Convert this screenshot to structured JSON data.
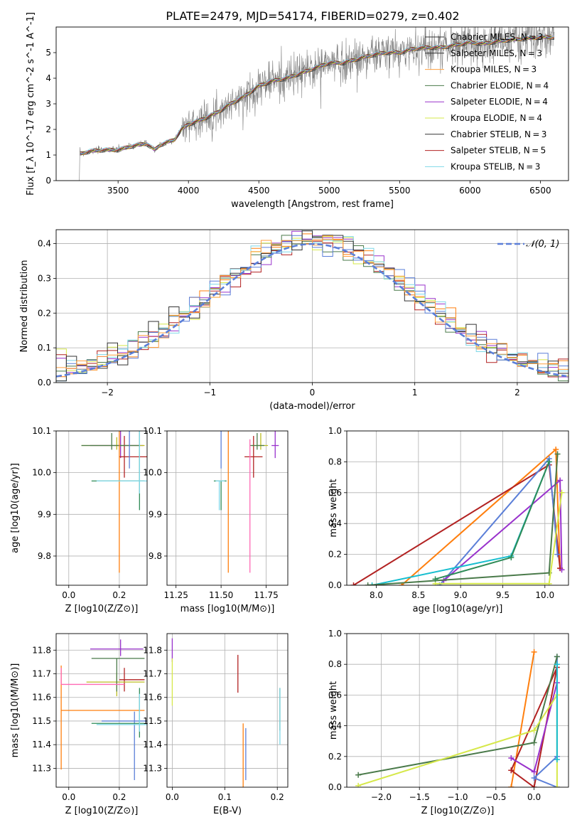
{
  "figure_title": "PLATE=2479, MJD=54174, FIBERID=0279, z=0.402",
  "colors": {
    "chabrier_miles": "#666666",
    "salpeter_miles": "#666666",
    "kroupa_miles": "#ff7f0e",
    "chabrier_elodie": "#2ca02c",
    "salpeter_elodie": "#9467bd",
    "kroupa_elodie": "#bcbd22",
    "chabrier_stelib": "#17becf",
    "salpeter_stelib": "#d62728",
    "kroupa_stelib": "#7fd0e0",
    "data": "#808080",
    "gaussian": "#5b7fd8"
  },
  "chart_data": [
    {
      "id": "spectrum",
      "type": "line",
      "title": "PLATE=2479, MJD=54174, FIBERID=0279, z=0.402",
      "xlabel": "wavelength [Angstrom, rest frame]",
      "ylabel": "Flux [f_λ 10^-17 erg cm^-2 s^-1 A^-1]",
      "xlim": [
        3060,
        6700
      ],
      "ylim": [
        0,
        6
      ],
      "xticks": [
        3500,
        4000,
        4500,
        5000,
        5500,
        6000,
        6500
      ],
      "yticks": [
        0,
        1,
        2,
        3,
        4,
        5
      ],
      "grid": false,
      "legend_position": "top-right",
      "legend": [
        {
          "label": "Chabrier MILES, N_SSP=3",
          "color": "#333333"
        },
        {
          "label": "Salpeter MILES, N_SSP=3",
          "color": "#333333"
        },
        {
          "label": "Kroupa MILES, N_SSP=3",
          "color": "#ff9f3f"
        },
        {
          "label": "Chabrier ELODIE, N_SSP=4",
          "color": "#4a7a4a"
        },
        {
          "label": "Salpeter ELODIE, N_SSP=4",
          "color": "#9932cc"
        },
        {
          "label": "Kroupa ELODIE, N_SSP=4",
          "color": "#d6e84a"
        },
        {
          "label": "Chabrier STELIB, N_SSP=3",
          "color": "#333333"
        },
        {
          "label": "Salpeter STELIB, N_SSP=5",
          "color": "#b22222"
        },
        {
          "label": "Kroupa STELIB, N_SSP=3",
          "color": "#7fd8e8"
        }
      ],
      "model_knots": {
        "x": [
          3230,
          3300,
          3400,
          3500,
          3600,
          3700,
          3760,
          3800,
          3900,
          3950,
          4000,
          4100,
          4200,
          4300,
          4400,
          4500,
          4600,
          4700,
          4800,
          4900,
          5000,
          5100,
          5200,
          5300,
          5400,
          5500,
          5600,
          5700,
          5800,
          5900,
          6000,
          6100,
          6200,
          6300,
          6400,
          6500,
          6600
        ],
        "y": [
          1.05,
          1.15,
          1.2,
          1.2,
          1.35,
          1.45,
          1.2,
          1.4,
          1.6,
          2.0,
          2.2,
          2.4,
          2.65,
          3.0,
          3.3,
          3.7,
          3.9,
          4.0,
          4.2,
          4.4,
          4.6,
          4.6,
          4.75,
          4.9,
          5.0,
          5.0,
          5.15,
          5.2,
          5.2,
          5.3,
          5.4,
          5.35,
          5.45,
          5.5,
          5.55,
          5.6,
          5.6
        ]
      }
    },
    {
      "id": "residuals",
      "type": "line",
      "xlabel": "(data-model)/error",
      "ylabel": "Normed distribution",
      "xlim": [
        -2.5,
        2.5
      ],
      "ylim": [
        0,
        0.44
      ],
      "xticks": [
        -2,
        -1,
        0,
        1,
        2
      ],
      "yticks": [
        0.0,
        0.1,
        0.2,
        0.3,
        0.4
      ],
      "grid": true,
      "legend_position": "top-right",
      "legend": [
        {
          "label": "𝒩(0, 1)",
          "color": "#5b7fd8"
        }
      ],
      "bin_width": 0.1
    },
    {
      "id": "age_vs_Z",
      "type": "scatter",
      "xlabel": "Z [log10(Z/Z⊙)]",
      "ylabel": "age [log10(age/yr)]",
      "xlim": [
        -0.05,
        0.31
      ],
      "ylim": [
        9.73,
        10.1
      ],
      "xticks": [
        0.0,
        0.2
      ],
      "yticks": [
        9.8,
        9.9,
        10.0,
        10.1
      ],
      "grid": true,
      "points": [
        {
          "x": 0.205,
          "y": 10.065,
          "xerr": [
            0.12,
            0.09
          ],
          "yerr": [
            0.03,
            0.04
          ],
          "color": "#9932cc"
        },
        {
          "x": 0.22,
          "y": 10.038,
          "xerr": [
            0.02,
            0.09
          ],
          "yerr": [
            0.05,
            0.05
          ],
          "color": "#b22222"
        },
        {
          "x": 0.19,
          "y": 10.065,
          "xerr": [
            0.14,
            0.11
          ],
          "yerr": [
            0.01,
            0.02
          ],
          "color": "#bcbd22"
        },
        {
          "x": 0.17,
          "y": 10.065,
          "xerr": [
            0.12,
            0.11
          ],
          "yerr": [
            0.01,
            0.03
          ],
          "color": "#4a7a4a"
        },
        {
          "x": 0.2,
          "y": 10.12,
          "xerr": [
            0.23,
            0.11
          ],
          "yerr": [
            0.36,
            0.0
          ],
          "color": "#ff7f0e"
        },
        {
          "x": 0.24,
          "y": 10.11,
          "xerr": [
            0.15,
            0.05
          ],
          "yerr": [
            0.1,
            0.0
          ],
          "color": "#5b7fd8"
        },
        {
          "x": 0.28,
          "y": 9.98,
          "xerr": [
            0.19,
            0.02
          ],
          "yerr": [
            0.07,
            0.15
          ],
          "color": "#2e8b57"
        },
        {
          "x": 0.28,
          "y": 9.98,
          "xerr": [
            0.17,
            0.03
          ],
          "yerr": [
            0.03,
            0.13
          ],
          "color": "#7fd8e8"
        }
      ]
    },
    {
      "id": "age_vs_mass",
      "type": "scatter",
      "xlabel": "mass [log10(M/M⊙)]",
      "xlim": [
        11.2,
        11.87
      ],
      "ylim": [
        9.73,
        10.1
      ],
      "xticks": [
        11.25,
        11.5,
        11.75
      ],
      "yticks": [
        9.8,
        9.9,
        10.0,
        10.1
      ],
      "grid": true,
      "points": [
        {
          "x": 11.8,
          "y": 10.065,
          "xerr": [
            0.02,
            0.02
          ],
          "yerr": [
            0.03,
            0.04
          ],
          "color": "#9932cc"
        },
        {
          "x": 11.68,
          "y": 10.038,
          "xerr": [
            0.05,
            0.05
          ],
          "yerr": [
            0.05,
            0.05
          ],
          "color": "#b22222"
        },
        {
          "x": 11.72,
          "y": 10.065,
          "xerr": [
            0.05,
            0.04
          ],
          "yerr": [
            0.01,
            0.03
          ],
          "color": "#bcbd22"
        },
        {
          "x": 11.7,
          "y": 10.065,
          "xerr": [
            0.04,
            0.04
          ],
          "yerr": [
            0.01,
            0.03
          ],
          "color": "#4a7a4a"
        },
        {
          "x": 11.54,
          "y": 10.12,
          "xerr": [
            0.2,
            0.0
          ],
          "yerr": [
            0.36,
            0.0
          ],
          "color": "#ff7f0e"
        },
        {
          "x": 11.5,
          "y": 10.11,
          "xerr": [
            0.25,
            0.02
          ],
          "yerr": [
            0.1,
            0.0
          ],
          "color": "#5b7fd8"
        },
        {
          "x": 11.5,
          "y": 9.98,
          "xerr": [
            0.04,
            0.03
          ],
          "yerr": [
            0.07,
            0.0
          ],
          "color": "#2e8b57"
        },
        {
          "x": 11.49,
          "y": 9.98,
          "xerr": [
            0.02,
            0.03
          ],
          "yerr": [
            0.07,
            0.0
          ],
          "color": "#7fd8e8"
        },
        {
          "x": 11.66,
          "y": 10.08,
          "xerr": [
            0.0,
            0.0
          ],
          "yerr": [
            0.32,
            0.0
          ],
          "color": "#ff69b4"
        }
      ]
    },
    {
      "id": "weight_vs_age",
      "type": "line",
      "xlabel": "age [log10(age/yr)]",
      "ylabel": "mass weight",
      "xlim": [
        7.65,
        10.28
      ],
      "ylim": [
        0,
        1
      ],
      "xticks": [
        8.0,
        8.5,
        9.0,
        9.5,
        10.0
      ],
      "yticks": [
        0.0,
        0.2,
        0.4,
        0.6,
        0.8,
        1.0
      ],
      "grid": true,
      "series": [
        {
          "color": "#ff7f0e",
          "x": [
            8.3,
            10.13,
            10.18
          ],
          "y": [
            0.0,
            0.88,
            0.11
          ]
        },
        {
          "color": "#b22222",
          "x": [
            7.73,
            10.05,
            10.18
          ],
          "y": [
            0.0,
            0.78,
            0.11
          ]
        },
        {
          "color": "#5b7fd8",
          "x": [
            8.75,
            10.05,
            10.15
          ],
          "y": [
            0.0,
            0.82,
            0.2
          ]
        },
        {
          "color": "#9932cc",
          "x": [
            8.8,
            10.18,
            10.2
          ],
          "y": [
            0.03,
            0.68,
            0.1
          ]
        },
        {
          "color": "#17becf",
          "x": [
            7.95,
            9.6,
            10.05
          ],
          "y": [
            0.0,
            0.19,
            0.8
          ]
        },
        {
          "color": "#4a7a4a",
          "x": [
            7.9,
            10.05,
            10.15
          ],
          "y": [
            0.0,
            0.08,
            0.85
          ]
        },
        {
          "color": "#d6e84a",
          "x": [
            8.7,
            10.05,
            10.2
          ],
          "y": [
            0.01,
            0.01,
            0.6
          ]
        },
        {
          "color": "#2e8b57",
          "x": [
            8.7,
            9.6,
            10.05
          ],
          "y": [
            0.04,
            0.18,
            0.8
          ]
        }
      ]
    },
    {
      "id": "mass_vs_Z",
      "type": "scatter",
      "xlabel": "Z [log10(Z/Z⊙)]",
      "ylabel": "mass [log10(M/M⊙)]",
      "xlim": [
        -0.05,
        0.31
      ],
      "ylim": [
        11.22,
        11.87
      ],
      "xticks": [
        0.0,
        0.2
      ],
      "yticks": [
        11.3,
        11.4,
        11.5,
        11.6,
        11.7,
        11.8
      ],
      "grid": true,
      "points": [
        {
          "x": 0.205,
          "y": 11.805,
          "xerr": [
            0.12,
            0.09
          ],
          "yerr": [
            0.03,
            0.04
          ],
          "color": "#9932cc"
        },
        {
          "x": 0.22,
          "y": 11.675,
          "xerr": [
            0.02,
            0.08
          ],
          "yerr": [
            0.05,
            0.05
          ],
          "color": "#b22222"
        },
        {
          "x": 0.19,
          "y": 11.665,
          "xerr": [
            0.12,
            0.11
          ],
          "yerr": [
            0.06,
            0.04
          ],
          "color": "#bcbd22"
        },
        {
          "x": 0.19,
          "y": 11.765,
          "xerr": [
            0.1,
            0.11
          ],
          "yerr": [
            0.14,
            0.0
          ],
          "color": "#4a7a4a"
        },
        {
          "x": -0.03,
          "y": 11.545,
          "xerr": [
            0.0,
            0.33
          ],
          "yerr": [
            0.25,
            0.19
          ],
          "color": "#ff7f0e"
        },
        {
          "x": 0.26,
          "y": 11.5,
          "xerr": [
            0.13,
            0.05
          ],
          "yerr": [
            0.25,
            0.04
          ],
          "color": "#5b7fd8"
        },
        {
          "x": 0.28,
          "y": 11.49,
          "xerr": [
            0.19,
            0.02
          ],
          "yerr": [
            0.06,
            0.15
          ],
          "color": "#2e8b57"
        },
        {
          "x": 0.28,
          "y": 11.485,
          "xerr": [
            0.17,
            0.03
          ],
          "yerr": [
            0.03,
            0.13
          ],
          "color": "#7fd8e8"
        },
        {
          "x": -0.03,
          "y": 11.655,
          "xerr": [
            0.0,
            0.25
          ],
          "yerr": [
            0.0,
            0.07
          ],
          "color": "#ff69b4"
        }
      ]
    },
    {
      "id": "mass_vs_EBV",
      "type": "scatter",
      "xlabel": "E(B-V)",
      "xlim": [
        -0.01,
        0.22
      ],
      "ylim": [
        11.22,
        11.87
      ],
      "xticks": [
        0.0,
        0.1,
        0.2
      ],
      "yticks": [
        11.3,
        11.4,
        11.5,
        11.6,
        11.7,
        11.8
      ],
      "grid": true,
      "points": [
        {
          "x": 0.0,
          "y": 11.8,
          "xerr": [
            0.0,
            0.0
          ],
          "yerr": [
            0.05,
            0.05
          ],
          "color": "#9932cc"
        },
        {
          "x": 0.125,
          "y": 11.7,
          "xerr": [
            0.0,
            0.0
          ],
          "yerr": [
            0.08,
            0.08
          ],
          "color": "#b22222"
        },
        {
          "x": 0.0,
          "y": 11.665,
          "xerr": [
            0.0,
            0.0
          ],
          "yerr": [
            0.1,
            0.1
          ],
          "color": "#d6e84a"
        },
        {
          "x": 0.205,
          "y": 11.55,
          "xerr": [
            0.0,
            0.0
          ],
          "yerr": [
            0.09,
            0.09
          ],
          "color": "#4a7a4a"
        },
        {
          "x": 0.135,
          "y": 11.4,
          "xerr": [
            0.0,
            0.0
          ],
          "yerr": [
            0.27,
            0.09
          ],
          "color": "#ff7f0e"
        },
        {
          "x": 0.14,
          "y": 11.37,
          "xerr": [
            0.0,
            0.0
          ],
          "yerr": [
            0.12,
            0.1
          ],
          "color": "#5b7fd8"
        },
        {
          "x": 0.205,
          "y": 11.5,
          "xerr": [
            0.0,
            0.0
          ],
          "yerr": [
            0.1,
            0.14
          ],
          "color": "#7fd8e8"
        }
      ]
    },
    {
      "id": "weight_vs_Z",
      "type": "line",
      "xlabel": "Z [log10(Z/Z⊙)]",
      "ylabel": "mass weight",
      "xlim": [
        -2.45,
        0.45
      ],
      "ylim": [
        0,
        1
      ],
      "xticks": [
        -2.0,
        -1.5,
        -1.0,
        -0.5,
        0.0
      ],
      "yticks": [
        0.0,
        0.2,
        0.4,
        0.6,
        0.8,
        1.0
      ],
      "grid": true,
      "series": [
        {
          "color": "#ff7f0e",
          "x": [
            -0.3,
            0.0,
            -0.3
          ],
          "y": [
            0.0,
            0.88,
            0.0
          ]
        },
        {
          "color": "#b22222",
          "x": [
            -0.3,
            0.0,
            0.3,
            -0.3
          ],
          "y": [
            0.11,
            0.0,
            0.78,
            0.11
          ]
        },
        {
          "color": "#5b7fd8",
          "x": [
            0.3,
            0.3,
            0.0,
            0.3
          ],
          "y": [
            0.85,
            0.2,
            0.06,
            0.0
          ]
        },
        {
          "color": "#9932cc",
          "x": [
            -0.3,
            0.0,
            0.3
          ],
          "y": [
            0.19,
            0.1,
            0.68
          ]
        },
        {
          "color": "#4a7a4a",
          "x": [
            -2.3,
            0.0,
            0.3
          ],
          "y": [
            0.08,
            0.29,
            0.85
          ]
        },
        {
          "color": "#d6e84a",
          "x": [
            -2.3,
            0.0,
            0.3,
            0.3
          ],
          "y": [
            0.01,
            0.37,
            0.6,
            0.0
          ]
        },
        {
          "color": "#17becf",
          "x": [
            0.3,
            0.3
          ],
          "y": [
            0.8,
            0.18
          ]
        }
      ]
    }
  ]
}
